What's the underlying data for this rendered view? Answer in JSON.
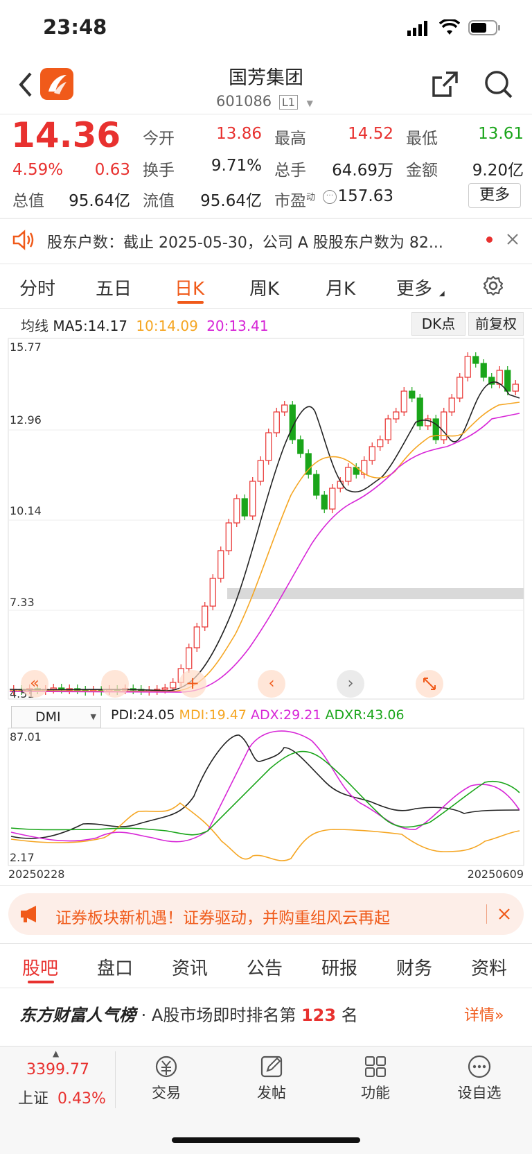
{
  "status_bar": {
    "time": "23:48"
  },
  "header": {
    "title": "国芳集团",
    "code": "601086",
    "level": "L1"
  },
  "quote": {
    "price": "14.36",
    "change_pct": "4.59%",
    "change": "0.63",
    "open_label": "今开",
    "open": "13.86",
    "high_label": "最高",
    "high": "14.52",
    "low_label": "最低",
    "low": "13.61",
    "turnover_label": "换手",
    "turnover": "9.71%",
    "volume_label": "总手",
    "volume": "64.69万",
    "amount_label": "金额",
    "amount": "9.20亿",
    "mcap_label": "总值",
    "mcap": "95.64亿",
    "float_label": "流值",
    "float": "95.64亿",
    "pe_label": "市盈",
    "pe_sup": "动",
    "pe": "157.63",
    "more_label": "更多"
  },
  "notice": {
    "text": "股东户数：截止 2025-05-30，公司 A 股股东户数为 82..."
  },
  "chart_tabs": [
    "分时",
    "五日",
    "日K",
    "周K",
    "月K",
    "更多"
  ],
  "active_chart_tab": 2,
  "ma_line": {
    "label": "均线",
    "ma5": "MA5:14.17",
    "ma10": "10:14.09",
    "ma20": "20:13.41",
    "dk_label": "DK点",
    "fq_label": "前复权"
  },
  "indicator": {
    "name": "DMI",
    "pdi": "PDI:24.05",
    "mdi": "MDI:19.47",
    "adx": "ADX:29.21",
    "adxr": "ADXR:43.06"
  },
  "colors": {
    "up": "#e8312f",
    "down": "#1aa51a",
    "ma5": "#222222",
    "ma10": "#f5a623",
    "ma20": "#d726d7",
    "accent": "#f05a1a"
  },
  "chart_data": {
    "type": "candlestick",
    "y_ticks": [
      "15.77",
      "12.96",
      "10.14",
      "7.33",
      "4.51"
    ],
    "ylim": [
      4.51,
      15.77
    ],
    "x_start": "20250228",
    "x_end": "20250609",
    "dmi_ticks": [
      "87.01",
      "2.17"
    ],
    "dmi_ylim": [
      2.17,
      87.01
    ]
  },
  "ad_banner": {
    "text": "证券板块新机遇！证券驱动，并购重组风云再起"
  },
  "bottom_tabs": [
    "股吧",
    "盘口",
    "资讯",
    "公告",
    "研报",
    "财务",
    "资料"
  ],
  "active_bottom_tab": 0,
  "rank": {
    "brand": "东方财富人气榜",
    "prefix": "· A股市场即时排名第",
    "number": "123",
    "suffix": "名",
    "detail": "详情"
  },
  "index_box": {
    "value": "3399.77",
    "name": "上证",
    "pct": "0.43%"
  },
  "bottom_nav": [
    {
      "label": "交易",
      "icon": "trade-icon"
    },
    {
      "label": "发帖",
      "icon": "post-icon"
    },
    {
      "label": "功能",
      "icon": "grid-icon"
    },
    {
      "label": "设自选",
      "icon": "more-icon"
    }
  ]
}
